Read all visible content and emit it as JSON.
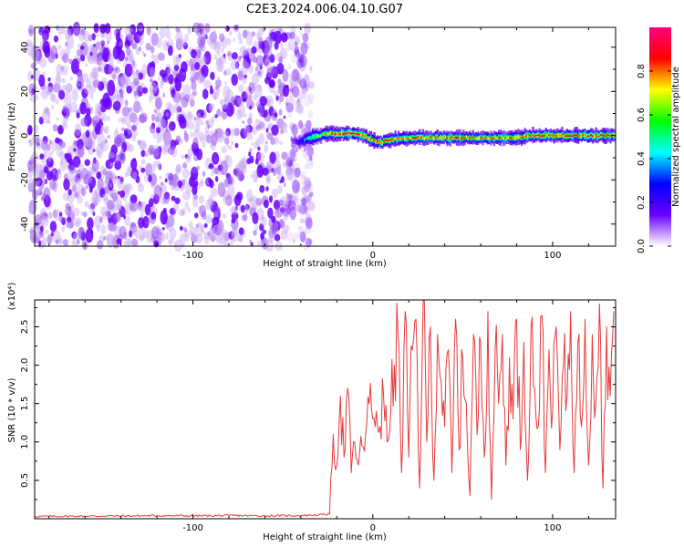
{
  "figure_title": "C2E3.2024.006.04.10.G07",
  "chart_data": [
    {
      "type": "heatmap",
      "title": "C2E3.2024.006.04.10.G07",
      "xlabel": "Height of straight line (km)",
      "ylabel": "Frequency (Hz)",
      "xlim": [
        -188,
        135
      ],
      "ylim": [
        -50,
        49
      ],
      "xticks": [
        -100,
        0,
        100
      ],
      "yticks": [
        -40,
        -20,
        0,
        20,
        40
      ],
      "colorbar": {
        "label": "Normalized spectral amplitude",
        "range": [
          0,
          1
        ],
        "ticks": [
          "0.0",
          "0.2",
          "0.4",
          "0.6",
          "0.8"
        ],
        "colormap": [
          "#ffffff",
          "#6a00ff",
          "#0000ff",
          "#00ffff",
          "#00ff00",
          "#ffff00",
          "#ff0000",
          "#ff0080"
        ]
      },
      "noise_region": {
        "x_range": [
          -188,
          -37
        ],
        "frequency_range": [
          -50,
          49
        ],
        "amplitude": "low (0.05-0.15)"
      },
      "signal_trace": {
        "x": [
          -45,
          -40,
          -35,
          -30,
          -25,
          -20,
          -15,
          -10,
          -5,
          0,
          5,
          10,
          20,
          30,
          40,
          50,
          60,
          70,
          80,
          90,
          100,
          110,
          120,
          130,
          135
        ],
        "frequency_hz": [
          -2,
          -3,
          -1,
          0,
          1,
          1,
          1,
          1,
          0,
          -2,
          -3,
          -2,
          -1,
          -1,
          -1,
          -1,
          -1,
          -1,
          -1,
          0,
          0,
          0,
          0,
          0,
          0
        ],
        "peak_amplitude": [
          0.1,
          0.25,
          0.5,
          0.6,
          0.75,
          0.85,
          0.9,
          0.9,
          0.85,
          0.85,
          0.85,
          0.85,
          0.8,
          0.8,
          0.8,
          0.8,
          0.8,
          0.8,
          0.8,
          0.85,
          0.85,
          0.85,
          0.85,
          0.85,
          0.85
        ]
      }
    },
    {
      "type": "line",
      "xlabel": "Height of straight line (km)",
      "ylabel": "SNR (10 * v/v)",
      "y_multiplier": "(x10⁴)",
      "xlim": [
        -188,
        135
      ],
      "ylim": [
        0,
        28500
      ],
      "xticks": [
        -100,
        0,
        100
      ],
      "yticks": [
        0.5,
        1.0,
        1.5,
        2.0,
        2.5
      ],
      "ytick_labels": [
        "0.5",
        "1.0",
        "1.5",
        "2.0",
        "2.5"
      ],
      "color": "#e8393a",
      "series": [
        {
          "x": [
            -188,
            -150,
            -120,
            -100,
            -80,
            -60,
            -40,
            -30,
            -24,
            -22,
            -20,
            -18,
            -16,
            -14,
            -12,
            -10,
            -8,
            -6,
            -4,
            -2,
            0,
            2,
            4,
            6,
            8,
            10,
            12,
            14,
            16,
            18,
            20,
            22,
            24,
            26,
            28,
            30,
            32,
            34,
            36,
            38,
            40,
            42,
            44,
            46,
            48,
            50,
            52,
            54,
            56,
            58,
            60,
            62,
            64,
            66,
            68,
            70,
            72,
            74,
            76,
            78,
            80,
            82,
            84,
            86,
            88,
            90,
            92,
            94,
            96,
            98,
            100,
            102,
            104,
            106,
            108,
            110,
            112,
            114,
            116,
            118,
            120,
            122,
            124,
            126,
            128,
            130,
            132,
            134
          ],
          "values": [
            300,
            350,
            400,
            380,
            420,
            380,
            420,
            500,
            600,
            11000,
            7000,
            16000,
            8000,
            17000,
            6000,
            10000,
            7000,
            9500,
            11000,
            15000,
            13000,
            14000,
            12000,
            16000,
            10000,
            14000,
            20000,
            24000,
            6000,
            27000,
            8000,
            22000,
            26000,
            4000,
            28500,
            10000,
            25000,
            5000,
            24000,
            18000,
            12000,
            22000,
            6000,
            26000,
            9000,
            21000,
            15000,
            3000,
            24000,
            11000,
            23000,
            8000,
            27000,
            2500,
            22000,
            15000,
            24000,
            7000,
            21000,
            13000,
            26000,
            9000,
            23000,
            5000,
            25000,
            17000,
            12000,
            26500,
            6000,
            22000,
            14000,
            25000,
            9000,
            20000,
            16000,
            27000,
            6000,
            23000,
            12000,
            26000,
            7000,
            24000,
            15000,
            28000,
            4000,
            25000,
            16000,
            27000
          ]
        }
      ]
    }
  ]
}
